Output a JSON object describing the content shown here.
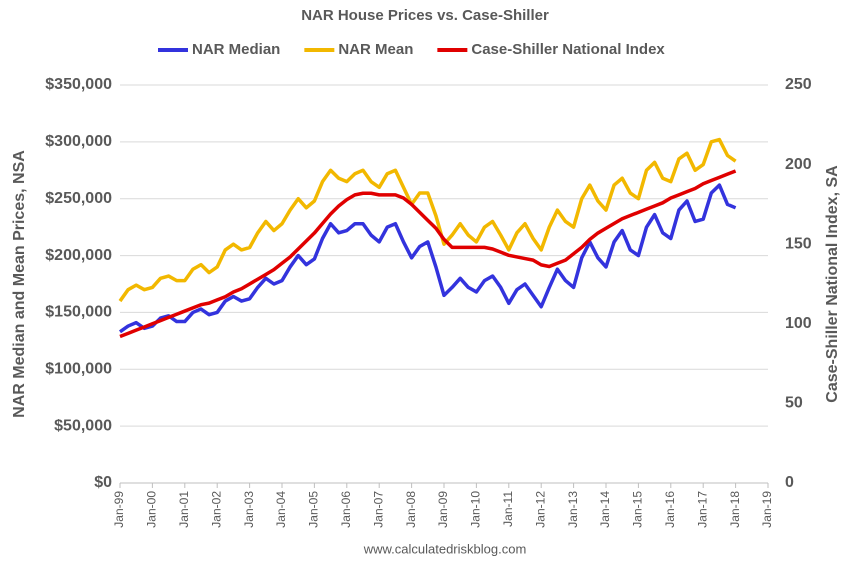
{
  "chart_data": {
    "type": "line",
    "title": "NAR House Prices vs. Case-Shiller",
    "y_label": "NAR Median and Mean Prices, NSA",
    "y2_label": "Case-Shiller National Index, SA",
    "source": "www.calculatedriskblog.com",
    "categories": [
      "Jan-99",
      null,
      null,
      null,
      "Jan-00",
      null,
      null,
      null,
      "Jan-01",
      null,
      null,
      null,
      "Jan-02",
      null,
      null,
      null,
      "Jan-03",
      null,
      null,
      null,
      "Jan-04",
      null,
      null,
      null,
      "Jan-05",
      null,
      null,
      null,
      "Jan-06",
      null,
      null,
      null,
      "Jan-07",
      null,
      null,
      null,
      "Jan-08",
      null,
      null,
      null,
      "Jan-09",
      null,
      null,
      null,
      "Jan-10",
      null,
      null,
      null,
      "Jan-11",
      null,
      null,
      null,
      "Jan-12",
      null,
      null,
      null,
      "Jan-13",
      null,
      null,
      null,
      "Jan-14",
      null,
      null,
      null,
      "Jan-15",
      null,
      null,
      null,
      "Jan-16",
      null,
      null,
      null,
      "Jan-17",
      null,
      null,
      null,
      "Jan-18",
      null,
      null,
      null,
      "Jan-19"
    ],
    "series": [
      {
        "name": "NAR Median",
        "color": "#3333dd",
        "axis": "y",
        "values": [
          133000,
          138000,
          141000,
          136000,
          138000,
          145000,
          147000,
          142000,
          142000,
          150000,
          153000,
          148000,
          150000,
          160000,
          164000,
          160000,
          162000,
          172000,
          180000,
          175000,
          178000,
          190000,
          200000,
          192000,
          197000,
          215000,
          228000,
          220000,
          222000,
          228000,
          228000,
          218000,
          212000,
          225000,
          228000,
          212000,
          198000,
          208000,
          212000,
          190000,
          165000,
          172000,
          180000,
          172000,
          168000,
          178000,
          182000,
          172000,
          158000,
          170000,
          175000,
          165000,
          155000,
          172000,
          188000,
          178000,
          172000,
          198000,
          212000,
          198000,
          190000,
          212000,
          222000,
          205000,
          200000,
          225000,
          236000,
          220000,
          215000,
          240000,
          248000,
          230000,
          232000,
          255000,
          262000,
          245000,
          242000,
          null,
          null,
          null,
          null
        ]
      },
      {
        "name": "NAR Mean",
        "color": "#f2b800",
        "axis": "y",
        "values": [
          160000,
          170000,
          174000,
          170000,
          172000,
          180000,
          182000,
          178000,
          178000,
          188000,
          192000,
          185000,
          190000,
          205000,
          210000,
          205000,
          207000,
          220000,
          230000,
          222000,
          228000,
          240000,
          250000,
          242000,
          248000,
          265000,
          275000,
          268000,
          265000,
          272000,
          275000,
          265000,
          260000,
          272000,
          275000,
          260000,
          245000,
          255000,
          255000,
          235000,
          210000,
          218000,
          228000,
          218000,
          212000,
          225000,
          230000,
          218000,
          205000,
          220000,
          228000,
          215000,
          205000,
          225000,
          240000,
          230000,
          225000,
          250000,
          262000,
          248000,
          240000,
          262000,
          268000,
          255000,
          250000,
          275000,
          282000,
          268000,
          265000,
          285000,
          290000,
          275000,
          280000,
          300000,
          302000,
          288000,
          283000,
          null,
          null,
          null,
          null
        ]
      },
      {
        "name": "Case-Shiller National Index",
        "color": "#e00000",
        "axis": "y2",
        "values": [
          92,
          94,
          96,
          98,
          100,
          102,
          104,
          106,
          108,
          110,
          112,
          113,
          115,
          117,
          120,
          122,
          125,
          128,
          131,
          134,
          138,
          142,
          147,
          152,
          157,
          163,
          169,
          174,
          178,
          181,
          182,
          182,
          181,
          181,
          181,
          179,
          175,
          170,
          165,
          160,
          153,
          148,
          148,
          148,
          148,
          148,
          147,
          145,
          143,
          142,
          141,
          140,
          137,
          136,
          138,
          140,
          144,
          148,
          153,
          157,
          160,
          163,
          166,
          168,
          170,
          172,
          174,
          176,
          179,
          181,
          183,
          185,
          188,
          190,
          192,
          194,
          196,
          null,
          null,
          null,
          null
        ]
      }
    ],
    "ylim": [
      0,
      350000
    ],
    "yticks": [
      {
        "value": 0,
        "label": "$0"
      },
      {
        "value": 50000,
        "label": "$50,000"
      },
      {
        "value": 100000,
        "label": "$100,000"
      },
      {
        "value": 150000,
        "label": "$150,000"
      },
      {
        "value": 200000,
        "label": "$200,000"
      },
      {
        "value": 250000,
        "label": "$250,000"
      },
      {
        "value": 300000,
        "label": "$300,000"
      },
      {
        "value": 350000,
        "label": "$350,000"
      }
    ],
    "y2lim": [
      0,
      250
    ],
    "y2ticks": [
      0,
      50,
      100,
      150,
      200,
      250
    ],
    "grid": true,
    "legend": "top"
  }
}
